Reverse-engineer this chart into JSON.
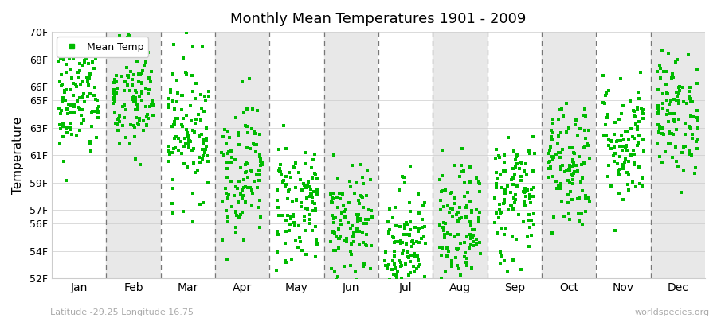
{
  "title": "Monthly Mean Temperatures 1901 - 2009",
  "ylabel": "Temperature",
  "xlabel_bottom_left": "Latitude -29.25 Longitude 16.75",
  "xlabel_bottom_right": "worldspecies.org",
  "legend_label": "Mean Temp",
  "dot_color": "#00bb00",
  "background_color": "#ffffff",
  "band_color_white": "#ffffff",
  "band_color_gray": "#e8e8e8",
  "months": [
    "Jan",
    "Feb",
    "Mar",
    "Apr",
    "May",
    "Jun",
    "Jul",
    "Aug",
    "Sep",
    "Oct",
    "Nov",
    "Dec"
  ],
  "month_means_F": [
    65.0,
    65.0,
    63.0,
    60.0,
    57.5,
    55.5,
    54.5,
    55.5,
    58.0,
    60.5,
    62.0,
    64.0
  ],
  "month_stds_F": [
    2.2,
    2.2,
    2.5,
    2.5,
    2.4,
    2.3,
    2.3,
    2.3,
    2.4,
    2.4,
    2.3,
    2.2
  ],
  "n_years": 109,
  "ylim_F": [
    52,
    70
  ],
  "yticks_F": [
    52,
    54,
    56,
    57,
    59,
    61,
    63,
    65,
    66,
    68,
    70
  ],
  "figsize": [
    9.0,
    4.0
  ],
  "dpi": 100,
  "seed": 42
}
